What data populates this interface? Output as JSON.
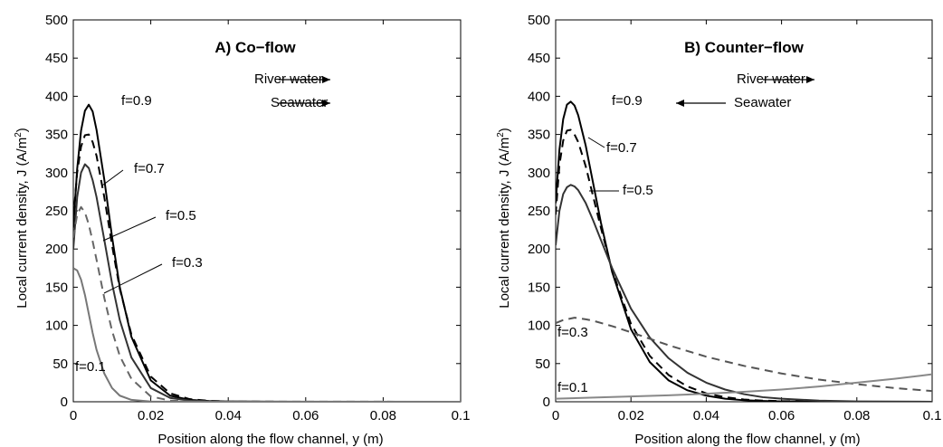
{
  "chart_data": [
    {
      "type": "line",
      "title": "A) Co−flow",
      "xlabel": "Position along the flow channel, y (m)",
      "ylabel": "Local current density, J (A/m",
      "ylabel_sup": "2",
      "ylabel_close": ")",
      "xlim": [
        0,
        0.1
      ],
      "ylim": [
        0,
        500
      ],
      "xticks": [
        0,
        0.02,
        0.04,
        0.06,
        0.08,
        0.1
      ],
      "xtick_labels": [
        "0",
        "0.02",
        "0.04",
        "0.06",
        "0.08",
        "0.1"
      ],
      "yticks": [
        0,
        50,
        100,
        150,
        200,
        250,
        300,
        350,
        400,
        450,
        500
      ],
      "ytick_labels": [
        "0",
        "50",
        "100",
        "150",
        "200",
        "250",
        "300",
        "350",
        "400",
        "450",
        "500"
      ],
      "flow_arrows": [
        {
          "label": "River water",
          "direction": "right"
        },
        {
          "label": "Seawater",
          "direction": "right"
        }
      ],
      "series": [
        {
          "name": "f=0.9",
          "color": "#000000",
          "dash": "solid",
          "x": [
            0,
            0.001,
            0.002,
            0.003,
            0.004,
            0.005,
            0.006,
            0.008,
            0.01,
            0.012,
            0.015,
            0.02,
            0.025,
            0.03,
            0.035,
            0.04,
            0.05,
            0.06,
            0.1
          ],
          "y": [
            228,
            305,
            355,
            381,
            389,
            380,
            356,
            291,
            216,
            150,
            85,
            28,
            8,
            2.5,
            1,
            0.4,
            0.1,
            0,
            0
          ]
        },
        {
          "name": "f=0.7",
          "color": "#000000",
          "dash": "dashed",
          "x": [
            0,
            0.001,
            0.002,
            0.003,
            0.004,
            0.005,
            0.006,
            0.008,
            0.01,
            0.012,
            0.015,
            0.02,
            0.025,
            0.03,
            0.035,
            0.04,
            0.05,
            0.06,
            0.1
          ],
          "y": [
            240,
            300,
            334,
            349,
            350,
            340,
            322,
            268,
            205,
            148,
            88,
            33,
            11,
            3.5,
            1.2,
            0.5,
            0.1,
            0,
            0
          ]
        },
        {
          "name": "f=0.5",
          "color": "#333333",
          "dash": "solid",
          "x": [
            0,
            0.001,
            0.002,
            0.003,
            0.004,
            0.005,
            0.006,
            0.008,
            0.01,
            0.012,
            0.015,
            0.02,
            0.025,
            0.03,
            0.035,
            0.04,
            0.05,
            0.1
          ],
          "y": [
            200,
            268,
            300,
            311,
            306,
            290,
            268,
            212,
            155,
            107,
            58,
            18,
            5,
            1.5,
            0.5,
            0.2,
            0,
            0
          ]
        },
        {
          "name": "f=0.3",
          "color": "#666666",
          "dash": "dashed",
          "x": [
            0,
            0.001,
            0.002,
            0.003,
            0.004,
            0.005,
            0.006,
            0.008,
            0.01,
            0.012,
            0.015,
            0.02,
            0.025,
            0.03,
            0.1
          ],
          "y": [
            215,
            245,
            255,
            248,
            232,
            210,
            186,
            136,
            93,
            60,
            30,
            7,
            1.5,
            0.3,
            0
          ]
        },
        {
          "name": "f=0.1",
          "color": "#777777",
          "dash": "solid",
          "x": [
            0,
            0.001,
            0.002,
            0.003,
            0.004,
            0.005,
            0.006,
            0.008,
            0.01,
            0.012,
            0.015,
            0.02,
            0.1
          ],
          "y": [
            175,
            172,
            160,
            140,
            115,
            90,
            68,
            37,
            18,
            8,
            2.5,
            0.3,
            0
          ]
        }
      ],
      "curve_labels": [
        {
          "text": "f=0.9"
        },
        {
          "text": "f=0.7"
        },
        {
          "text": "f=0.5"
        },
        {
          "text": "f=0.3"
        },
        {
          "text": "f=0.1"
        }
      ]
    },
    {
      "type": "line",
      "title": "B) Counter−flow",
      "xlabel": "Position along the flow channel, y (m)",
      "ylabel": "Local current density, J (A/m",
      "ylabel_sup": "2",
      "ylabel_close": ")",
      "xlim": [
        0,
        0.1
      ],
      "ylim": [
        0,
        500
      ],
      "xticks": [
        0,
        0.02,
        0.04,
        0.06,
        0.08,
        0.1
      ],
      "xtick_labels": [
        "0",
        "0.02",
        "0.04",
        "0.06",
        "0.08",
        "0.1"
      ],
      "yticks": [
        0,
        50,
        100,
        150,
        200,
        250,
        300,
        350,
        400,
        450,
        500
      ],
      "ytick_labels": [
        "0",
        "50",
        "100",
        "150",
        "200",
        "250",
        "300",
        "350",
        "400",
        "450",
        "500"
      ],
      "flow_arrows": [
        {
          "label": "River water",
          "direction": "right"
        },
        {
          "label": "Seawater",
          "direction": "left"
        }
      ],
      "series": [
        {
          "name": "f=0.9",
          "color": "#000000",
          "dash": "solid",
          "x": [
            0,
            0.001,
            0.002,
            0.003,
            0.004,
            0.005,
            0.006,
            0.008,
            0.01,
            0.012,
            0.015,
            0.02,
            0.025,
            0.03,
            0.035,
            0.04,
            0.045,
            0.05,
            0.055,
            0.06,
            0.07,
            0.08,
            0.1
          ],
          "y": [
            260,
            330,
            370,
            389,
            393,
            388,
            375,
            335,
            285,
            235,
            170,
            95,
            52,
            28,
            15,
            8,
            4,
            2,
            1,
            0.5,
            0.1,
            0,
            0
          ]
        },
        {
          "name": "f=0.7",
          "color": "#000000",
          "dash": "dashed",
          "x": [
            0,
            0.001,
            0.002,
            0.003,
            0.004,
            0.005,
            0.006,
            0.008,
            0.01,
            0.012,
            0.015,
            0.02,
            0.025,
            0.03,
            0.035,
            0.04,
            0.045,
            0.05,
            0.055,
            0.06,
            0.07,
            0.08,
            0.1
          ],
          "y": [
            245,
            310,
            342,
            355,
            356,
            350,
            340,
            308,
            268,
            228,
            172,
            102,
            60,
            35,
            20,
            11,
            6,
            3,
            1.5,
            0.8,
            0.2,
            0,
            0
          ]
        },
        {
          "name": "f=0.5",
          "color": "#333333",
          "dash": "solid",
          "x": [
            0,
            0.001,
            0.002,
            0.003,
            0.004,
            0.005,
            0.006,
            0.008,
            0.01,
            0.012,
            0.015,
            0.02,
            0.025,
            0.03,
            0.035,
            0.04,
            0.045,
            0.05,
            0.055,
            0.06,
            0.07,
            0.08,
            0.1
          ],
          "y": [
            205,
            250,
            272,
            281,
            284,
            282,
            277,
            260,
            237,
            212,
            175,
            122,
            84,
            57,
            38,
            25,
            16,
            10,
            6,
            4,
            1.5,
            0.5,
            0
          ]
        },
        {
          "name": "f=0.3",
          "color": "#555555",
          "dash": "dashed",
          "x": [
            0,
            0.002,
            0.004,
            0.005,
            0.006,
            0.008,
            0.01,
            0.015,
            0.02,
            0.03,
            0.04,
            0.05,
            0.06,
            0.07,
            0.08,
            0.09,
            0.1
          ],
          "y": [
            103,
            107,
            109,
            110,
            109.5,
            108,
            106,
            99,
            91,
            74,
            59,
            47,
            37,
            29,
            23,
            18,
            14
          ]
        },
        {
          "name": "f=0.1",
          "color": "#888888",
          "dash": "solid",
          "x": [
            0,
            0.01,
            0.02,
            0.03,
            0.04,
            0.05,
            0.06,
            0.07,
            0.08,
            0.09,
            0.1
          ],
          "y": [
            4,
            5.5,
            7,
            8.5,
            10.5,
            13,
            16,
            20,
            25,
            30,
            36
          ]
        }
      ],
      "curve_labels": [
        {
          "text": "f=0.9"
        },
        {
          "text": "f=0.7"
        },
        {
          "text": "f=0.5"
        },
        {
          "text": "f=0.3"
        },
        {
          "text": "f=0.1"
        }
      ]
    }
  ]
}
